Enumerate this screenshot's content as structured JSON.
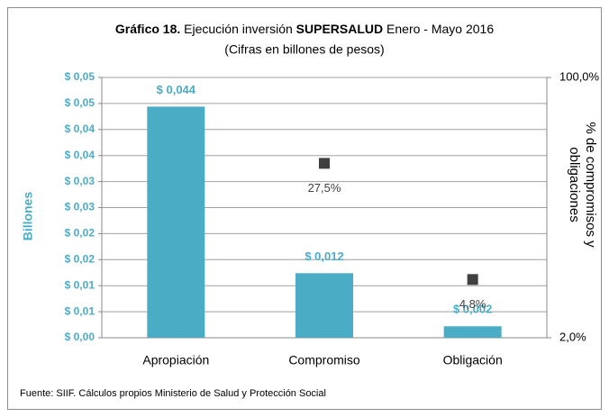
{
  "chart_data": {
    "type": "bar",
    "title": [
      "Gráfico 18.",
      "Ejecución inversión",
      "SUPERSALUD",
      "Enero - Mayo 2016"
    ],
    "subtitle": "(Cifras en billones de pesos)",
    "y_label": "Billones",
    "y2_label": [
      "% de compromisos y",
      "obligaciones"
    ],
    "source": "Fuente: SIIF. Cálculos propios Ministerio de Salud y Protección Social",
    "categories": [
      "Apropiación",
      "Compromiso",
      "Obligación"
    ],
    "series": [
      {
        "name": "Billones",
        "color": "#4bacc6",
        "values": [
          0.0444,
          0.0124,
          0.0022
        ],
        "value_labels": [
          "$ 0,044",
          "$ 0,012",
          "$ 0,002"
        ]
      },
      {
        "name": "% de compromisos y obligaciones",
        "color": "#404040",
        "axis": "y2",
        "values": [
          null,
          27.5,
          4.8
        ],
        "value_labels": [
          null,
          "27,5%",
          "4,8%"
        ]
      }
    ],
    "ylim": [
      0,
      0.05
    ],
    "yticks": [
      {
        "value": 0,
        "label": "$ 0,00"
      },
      {
        "value": 0.005,
        "label": "$ 0,01"
      },
      {
        "value": 0.01,
        "label": "$ 0,01"
      },
      {
        "value": 0.015,
        "label": "$ 0,02"
      },
      {
        "value": 0.02,
        "label": "$ 0,02"
      },
      {
        "value": 0.025,
        "label": "$ 0,03"
      },
      {
        "value": 0.03,
        "label": "$ 0,03"
      },
      {
        "value": 0.035,
        "label": "$ 0,04"
      },
      {
        "value": 0.04,
        "label": "$ 0,04"
      },
      {
        "value": 0.045,
        "label": "$ 0,05"
      },
      {
        "value": 0.05,
        "label": "$ 0,05"
      }
    ],
    "y2lim": [
      2,
      100
    ],
    "y2ticks": [
      {
        "value": 2,
        "label": "2,0%"
      },
      {
        "value": 100,
        "label": "100,0%"
      }
    ],
    "y2_log": true,
    "grid": true
  }
}
